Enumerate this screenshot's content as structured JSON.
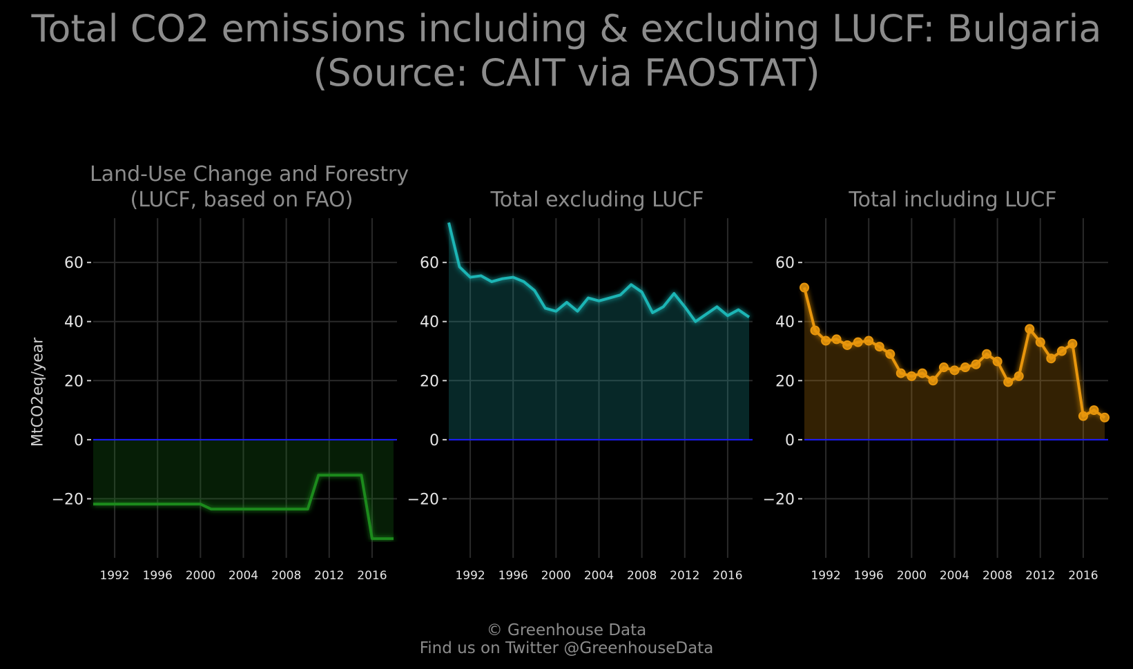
{
  "title": {
    "line1": "Total CO2 emissions including & excluding LUCF: Bulgaria",
    "line2": "(Source: CAIT via FAOSTAT)"
  },
  "ylabel": "MtCO2eq/year",
  "footer": {
    "line1": "© Greenhouse Data",
    "line2": "Find us on Twitter @GreenhouseData"
  },
  "colors": {
    "background": "#000000",
    "grid": "#2a2a2a",
    "zero_line": "#1a1aff",
    "lucf": "#1a8a1a",
    "excl": "#1fb5b5",
    "incl": "#e8960c"
  },
  "chart_data": [
    {
      "type": "area",
      "title_line1": "Land-Use Change and Forestry",
      "title_line2": "(LUCF, based on FAO)",
      "ylim": [
        -40,
        75
      ],
      "yticks": [
        -20,
        0,
        20,
        40,
        60
      ],
      "ytick_labels": [
        "−20",
        "0",
        "20",
        "40",
        "60"
      ],
      "xlim": [
        1990,
        2018
      ],
      "xticks": [
        1992,
        1996,
        2000,
        2004,
        2008,
        2012,
        2016
      ],
      "xticks_grid": [
        1992,
        1996,
        2000,
        2004,
        2008,
        2012,
        2016
      ],
      "markers": false,
      "color": "#1a8a1a",
      "x": [
        1990,
        1991,
        1992,
        1993,
        1994,
        1995,
        1996,
        1997,
        1998,
        1999,
        2000,
        2001,
        2002,
        2003,
        2004,
        2005,
        2006,
        2007,
        2008,
        2009,
        2010,
        2011,
        2012,
        2013,
        2014,
        2015,
        2016,
        2017,
        2018
      ],
      "y": [
        -21.8,
        -21.8,
        -21.8,
        -21.8,
        -21.8,
        -21.8,
        -21.8,
        -21.8,
        -21.8,
        -21.8,
        -21.8,
        -23.5,
        -23.5,
        -23.5,
        -23.5,
        -23.5,
        -23.5,
        -23.5,
        -23.5,
        -23.5,
        -23.5,
        -12.0,
        -12.0,
        -12.0,
        -12.0,
        -12.0,
        -33.5,
        -33.5,
        -33.5
      ]
    },
    {
      "type": "area",
      "title_line1": "",
      "title_line2": "Total excluding LUCF",
      "ylim": [
        -40,
        75
      ],
      "yticks": [
        -20,
        0,
        20,
        40,
        60
      ],
      "ytick_labels": [
        "−20",
        "0",
        "20",
        "40",
        "60"
      ],
      "xlim": [
        1990,
        2018
      ],
      "xticks": [
        1992,
        1996,
        2000,
        2004,
        2008,
        2012,
        2016
      ],
      "markers": false,
      "color": "#1fb5b5",
      "x": [
        1990,
        1991,
        1992,
        1993,
        1994,
        1995,
        1996,
        1997,
        1998,
        1999,
        2000,
        2001,
        2002,
        2003,
        2004,
        2005,
        2006,
        2007,
        2008,
        2009,
        2010,
        2011,
        2012,
        2013,
        2014,
        2015,
        2016,
        2017,
        2018
      ],
      "y": [
        73.5,
        58.5,
        55.0,
        55.5,
        53.5,
        54.5,
        55.0,
        53.5,
        50.5,
        44.5,
        43.5,
        46.5,
        43.5,
        48.0,
        47.0,
        48.0,
        49.0,
        52.5,
        50.0,
        43.0,
        45.0,
        49.5,
        45.0,
        40.0,
        42.5,
        45.0,
        42.0,
        44.0,
        41.5
      ]
    },
    {
      "type": "area",
      "title_line1": "",
      "title_line2": "Total including LUCF",
      "ylim": [
        -40,
        75
      ],
      "yticks": [
        -20,
        0,
        20,
        40,
        60
      ],
      "ytick_labels": [
        "−20",
        "0",
        "20",
        "40",
        "60"
      ],
      "xlim": [
        1990,
        2018
      ],
      "xticks": [
        1992,
        1996,
        2000,
        2004,
        2008,
        2012,
        2016
      ],
      "markers": true,
      "color": "#e8960c",
      "x": [
        1990,
        1991,
        1992,
        1993,
        1994,
        1995,
        1996,
        1997,
        1998,
        1999,
        2000,
        2001,
        2002,
        2003,
        2004,
        2005,
        2006,
        2007,
        2008,
        2009,
        2010,
        2011,
        2012,
        2013,
        2014,
        2015,
        2016,
        2017,
        2018
      ],
      "y": [
        51.5,
        37.0,
        33.5,
        34.0,
        32.0,
        33.0,
        33.5,
        31.5,
        29.0,
        22.5,
        21.5,
        22.5,
        20.0,
        24.5,
        23.5,
        24.5,
        25.5,
        29.0,
        26.5,
        19.5,
        21.5,
        37.5,
        33.0,
        27.5,
        30.0,
        32.5,
        8.0,
        10.0,
        7.5
      ]
    }
  ]
}
